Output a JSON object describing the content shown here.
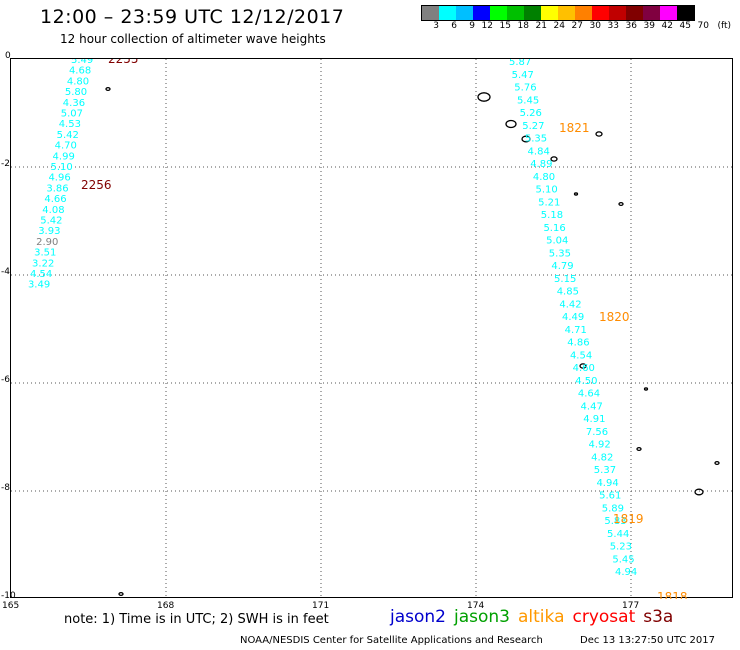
{
  "title": "12:00 – 23:59 UTC 12/12/2017",
  "subtitle": "12 hour collection of altimeter wave heights",
  "legend": {
    "colors": [
      "#808080",
      "#00ffff",
      "#00bfff",
      "#0000ff",
      "#00ff00",
      "#00c000",
      "#008000",
      "#ffff00",
      "#ffc000",
      "#ff8000",
      "#ff0000",
      "#c00000",
      "#800000",
      "#800040",
      "#ff00ff",
      "#000000"
    ],
    "labels": [
      "3",
      "6",
      "9",
      "12",
      "15",
      "18",
      "21",
      "24",
      "27",
      "30",
      "33",
      "36",
      "39",
      "42",
      "45",
      "70"
    ],
    "unit": "(ft)"
  },
  "axes": {
    "y_ticks": [
      "0",
      "-2",
      "-4",
      "-6",
      "-8",
      "-10"
    ],
    "x_ticks": [
      "165",
      "168",
      "171",
      "174",
      "177"
    ]
  },
  "tracks": [
    {
      "time_labels": [
        {
          "text": "2255",
          "color": "#800000"
        },
        {
          "text": "2256",
          "color": "#800000"
        }
      ],
      "values": [
        "5.49",
        "4.68",
        "4.80",
        "5.80",
        "4.36",
        "5.07",
        "4.53",
        "5.42",
        "4.70",
        "4.99",
        "5.10",
        "4.96",
        "3.86",
        "4.66",
        "4.08",
        "5.42",
        "3.93",
        "2.90",
        "3.51",
        "3.22",
        "4.54",
        "3.49"
      ],
      "colors": [
        "#00ffff",
        "#00ffff",
        "#00ffff",
        "#00ffff",
        "#00ffff",
        "#00ffff",
        "#00ffff",
        "#00ffff",
        "#00ffff",
        "#00ffff",
        "#00ffff",
        "#00ffff",
        "#00ffff",
        "#00ffff",
        "#00ffff",
        "#00ffff",
        "#00ffff",
        "#808080",
        "#00ffff",
        "#00ffff",
        "#00ffff",
        "#00ffff"
      ]
    },
    {
      "time_labels": [
        {
          "text": "1821",
          "color": "#ff8c00"
        },
        {
          "text": "1820",
          "color": "#ff8c00"
        },
        {
          "text": "1819",
          "color": "#ff8c00"
        },
        {
          "text": "1818",
          "color": "#ff8c00"
        }
      ],
      "values": [
        "5.87",
        "5.47",
        "5.76",
        "5.45",
        "5.26",
        "5.27",
        "5.35",
        "4.84",
        "4.89",
        "4.80",
        "5.10",
        "5.21",
        "5.18",
        "5.16",
        "5.04",
        "5.35",
        "4.79",
        "5.15",
        "4.85",
        "4.42",
        "4.49",
        "4.71",
        "4.86",
        "4.54",
        "4.60",
        "4.50",
        "4.64",
        "4.47",
        "4.91",
        "7.56",
        "4.92",
        "4.82",
        "5.37",
        "4.94",
        "5.61",
        "5.89",
        "5.83",
        "5.44",
        "5.23",
        "5.45",
        "4.94"
      ],
      "colors": []
    }
  ],
  "note": "note:  1) Time is in UTC;  2) SWH is in feet",
  "missions": [
    {
      "name": "jason2",
      "color": "#0000cc"
    },
    {
      "name": "jason3",
      "color": "#00a000"
    },
    {
      "name": "altika",
      "color": "#ff9900"
    },
    {
      "name": "cryosat",
      "color": "#ff0000"
    },
    {
      "name": "s3a",
      "color": "#800000"
    }
  ],
  "credit": "NOAA/NESDIS Center for Satellite Applications and Research",
  "timestamp": "Dec 13 13:27:50 UTC 2017"
}
